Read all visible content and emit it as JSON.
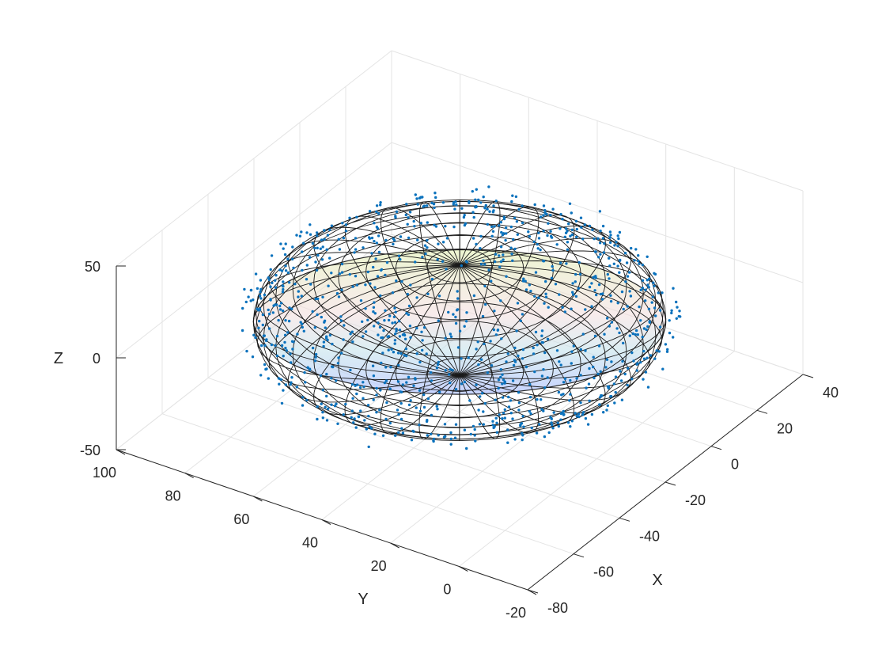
{
  "chart_data": {
    "type": "scatter",
    "subtype": "3d-scatter-with-ellipsoid-fit",
    "title": "",
    "xlabel": "X",
    "ylabel": "Y",
    "zlabel": "Z",
    "xlim": [
      -80,
      40
    ],
    "ylim": [
      -20,
      100
    ],
    "zlim": [
      -50,
      50
    ],
    "x_ticks": [
      "-80",
      "-60",
      "-40",
      "-20",
      "0",
      "20",
      "40"
    ],
    "y_ticks": [
      "-20",
      "0",
      "20",
      "40",
      "60",
      "80",
      "100"
    ],
    "z_ticks": [
      "-50",
      "0",
      "50"
    ],
    "grid": true,
    "ellipsoid": {
      "center": [
        -20,
        40,
        0
      ],
      "radii": [
        50,
        50,
        30
      ],
      "surface_colormap": [
        "#b8c8ff",
        "#c6e6ee",
        "#f2dede",
        "#e8f2c2"
      ],
      "edge_color": "#000000"
    },
    "scatter_color": "#0072bd",
    "point_count": 1000
  }
}
